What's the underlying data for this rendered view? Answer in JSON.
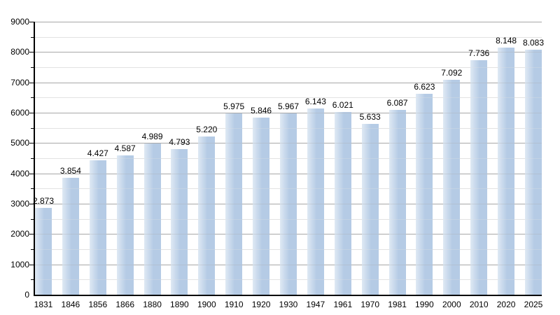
{
  "chart_data": {
    "type": "bar",
    "title": "",
    "xlabel": "",
    "ylabel": "",
    "categories": [
      "1831",
      "1846",
      "1856",
      "1866",
      "1880",
      "1890",
      "1900",
      "1910",
      "1920",
      "1930",
      "1947",
      "1961",
      "1970",
      "1981",
      "1990",
      "2000",
      "2010",
      "2020",
      "2025"
    ],
    "values": [
      2873,
      3854,
      4427,
      4587,
      4989,
      4793,
      5220,
      5975,
      5846,
      5967,
      6143,
      6021,
      5633,
      6087,
      6623,
      7092,
      7736,
      8148,
      8083
    ],
    "value_labels": [
      "2.873",
      "3.854",
      "4.427",
      "4.587",
      "4.989",
      "4.793",
      "5.220",
      "5.975",
      "5.846",
      "5.967",
      "6.143",
      "6.021",
      "5.633",
      "6.087",
      "6.623",
      "7.092",
      "7.736",
      "8.148",
      "8.083"
    ],
    "ylim": [
      0,
      9000
    ],
    "y_major_step": 1000,
    "y_minor_step": 500,
    "y_tick_labels": [
      "0",
      "1000",
      "2000",
      "3000",
      "4000",
      "5000",
      "6000",
      "7000",
      "8000",
      "9000"
    ],
    "grid": "on",
    "legend": "none",
    "colors": {
      "bar": "#b5cbe5",
      "bar_highlight": "#dfe9f4",
      "grid_major": "#a8a8a8",
      "grid_minor": "#e2e2e2",
      "axis": "#000000",
      "text": "#000000",
      "background": "#ffffff"
    }
  }
}
